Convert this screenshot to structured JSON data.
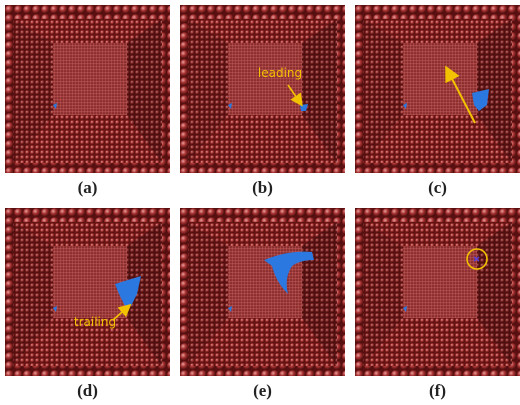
{
  "panels": [
    {
      "label": "(a)"
    },
    {
      "label": "(b)",
      "annotation": "leading"
    },
    {
      "label": "(c)"
    },
    {
      "label": "(d)",
      "annotation": "trailing"
    },
    {
      "label": "(e)"
    },
    {
      "label": "(f)"
    }
  ]
}
